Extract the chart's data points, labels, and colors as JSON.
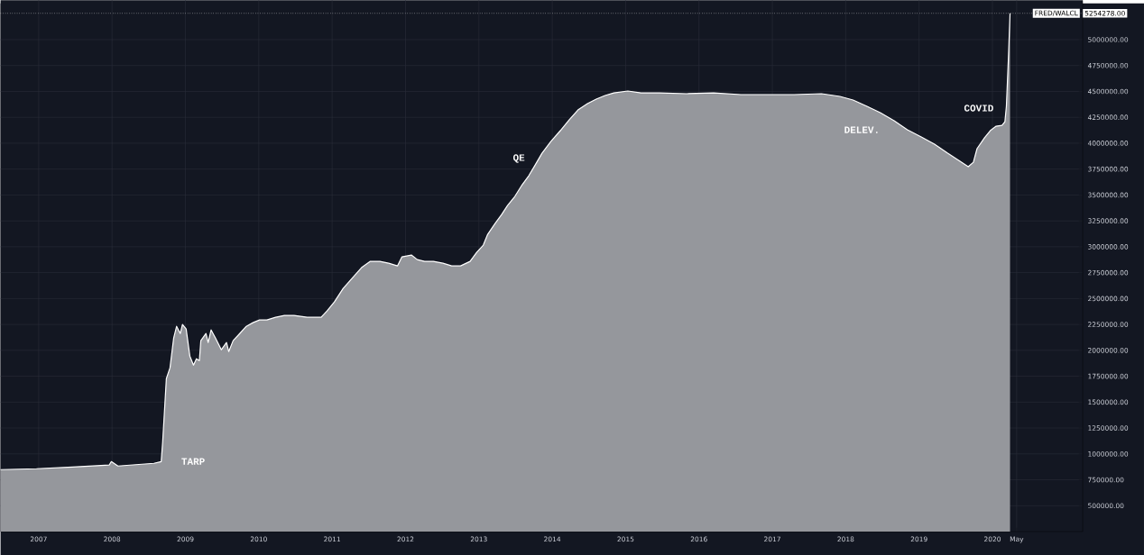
{
  "chart_data": {
    "type": "area",
    "x": [
      2006.48,
      2006.97,
      2007.46,
      2007.96,
      2007.99,
      2008.08,
      2008.57,
      2008.67,
      2008.69,
      2008.74,
      2008.79,
      2008.84,
      2008.88,
      2008.93,
      2008.96,
      2009.01,
      2009.06,
      2009.11,
      2009.15,
      2009.19,
      2009.21,
      2009.28,
      2009.31,
      2009.35,
      2009.41,
      2009.49,
      2009.56,
      2009.59,
      2009.65,
      2009.74,
      2009.83,
      2009.92,
      2010.01,
      2010.11,
      2010.23,
      2010.35,
      2010.48,
      2010.66,
      2010.85,
      2010.93,
      2011.03,
      2011.15,
      2011.28,
      2011.4,
      2011.52,
      2011.65,
      2011.77,
      2011.89,
      2011.95,
      2012.08,
      2012.16,
      2012.26,
      2012.38,
      2012.51,
      2012.63,
      2012.75,
      2012.88,
      2012.97,
      2013.06,
      2013.12,
      2013.22,
      2013.31,
      2013.39,
      2013.49,
      2013.59,
      2013.68,
      2013.76,
      2013.86,
      2013.98,
      2014.11,
      2014.23,
      2014.35,
      2014.48,
      2014.6,
      2014.72,
      2014.84,
      2015.03,
      2015.21,
      2015.46,
      2015.83,
      2016.2,
      2016.57,
      2016.93,
      2017.3,
      2017.67,
      2017.92,
      2018.1,
      2018.29,
      2018.47,
      2018.66,
      2018.84,
      2019.03,
      2019.21,
      2019.39,
      2019.54,
      2019.67,
      2019.74,
      2019.79,
      2019.89,
      2019.97,
      2020.05,
      2020.13,
      2020.17,
      2020.19,
      2020.22,
      2020.24
    ],
    "series": [
      {
        "name": "FRED/WALCL",
        "color": "#ffffff",
        "values": [
          848000,
          857000,
          874000,
          892000,
          926000,
          883000,
          909000,
          926000,
          1118000,
          1727000,
          1832000,
          2119000,
          2232000,
          2162000,
          2250000,
          2206000,
          1945000,
          1858000,
          1919000,
          1901000,
          2093000,
          2162000,
          2075000,
          2197000,
          2119000,
          2006000,
          2075000,
          1988000,
          2093000,
          2162000,
          2232000,
          2267000,
          2293000,
          2293000,
          2319000,
          2337000,
          2337000,
          2319000,
          2319000,
          2380000,
          2467000,
          2598000,
          2702000,
          2798000,
          2859000,
          2859000,
          2841000,
          2815000,
          2902000,
          2920000,
          2876000,
          2859000,
          2859000,
          2841000,
          2815000,
          2815000,
          2859000,
          2946000,
          3016000,
          3120000,
          3224000,
          3311000,
          3398000,
          3486000,
          3599000,
          3686000,
          3781000,
          3903000,
          4016000,
          4121000,
          4225000,
          4321000,
          4382000,
          4426000,
          4460000,
          4486000,
          4504000,
          4486000,
          4486000,
          4478000,
          4486000,
          4469000,
          4469000,
          4469000,
          4478000,
          4452000,
          4417000,
          4356000,
          4295000,
          4217000,
          4130000,
          4060000,
          3990000,
          3903000,
          3834000,
          3773000,
          3816000,
          3947000,
          4051000,
          4121000,
          4164000,
          4173000,
          4208000,
          4356000,
          4861000,
          5254278
        ]
      }
    ],
    "xlim": [
      2006.48,
      2021.23
    ],
    "ylim": [
      250000,
      5380000
    ],
    "xticks": [
      2007,
      2008,
      2009,
      2010,
      2011,
      2012,
      2013,
      2014,
      2015,
      2016,
      2017,
      2018,
      2019,
      2020,
      {
        "value": 2020.33,
        "label": "May"
      }
    ],
    "yticks": [
      {
        "value": 500000,
        "label": "500000.00"
      },
      {
        "value": 750000,
        "label": "750000.00"
      },
      {
        "value": 1000000,
        "label": "1000000.00"
      },
      {
        "value": 1250000,
        "label": "1250000.00"
      },
      {
        "value": 1500000,
        "label": "1500000.00"
      },
      {
        "value": 1750000,
        "label": "1750000.00"
      },
      {
        "value": 2000000,
        "label": "2000000.00"
      },
      {
        "value": 2250000,
        "label": "2250000.00"
      },
      {
        "value": 2500000,
        "label": "2500000.00"
      },
      {
        "value": 2750000,
        "label": "2750000.00"
      },
      {
        "value": 3000000,
        "label": "3000000.00"
      },
      {
        "value": 3250000,
        "label": "3250000.00"
      },
      {
        "value": 3500000,
        "label": "3500000.00"
      },
      {
        "value": 3750000,
        "label": "3750000.00"
      },
      {
        "value": 4000000,
        "label": "4000000.00"
      },
      {
        "value": 4250000,
        "label": "4250000.00"
      },
      {
        "value": 4500000,
        "label": "4500000.00"
      },
      {
        "value": 4750000,
        "label": "4750000.00"
      },
      {
        "value": 5000000,
        "label": "5000000.00"
      }
    ],
    "grid": true,
    "ref_lines": [
      {
        "axis": "y",
        "value": 5254278,
        "label": "5254278.00",
        "line_style": "dotted",
        "color": "#ffffff"
      }
    ],
    "annotations": [
      "TARP",
      "QE",
      "DELEV.",
      "COVID"
    ]
  }
}
